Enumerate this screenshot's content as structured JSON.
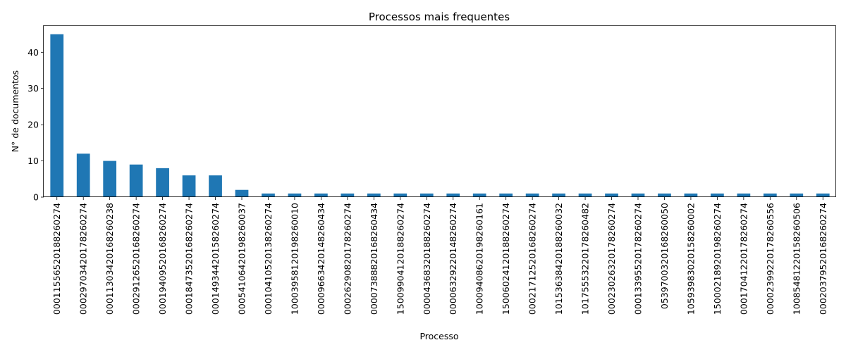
{
  "chart_data": {
    "type": "bar",
    "title": "Processos mais frequentes",
    "xlabel": "Processo",
    "ylabel": "N° de documentos",
    "ylim": [
      0,
      47.25
    ],
    "yticks": [
      0,
      10,
      20,
      30,
      40
    ],
    "bar_color": "#1f77b4",
    "grid": false,
    "categories": [
      "00011556520188260274",
      "00029703420178260274",
      "00011303420168260238",
      "00029126520168260274",
      "00019409520168260274",
      "00018473520168260274",
      "00014934420158260274",
      "00054106420198260037",
      "00010410520138260274",
      "10003958120198260010",
      "00009663420148260434",
      "00026290820178260274",
      "00007388820168260434",
      "15009904120188260274",
      "00004368320188260274",
      "00006329220148260274",
      "10009408620198260161",
      "15006024120188260274",
      "00021712520168260274",
      "10153638420188260032",
      "10175553220178260482",
      "00023026320178260274",
      "00013395520178260274",
      "05397003201682600 50",
      "10593983020158260002",
      "15000218920198260274",
      "00017041220178260274",
      "00002399220178260556",
      "10085481220158260506",
      "00020379520168260274"
    ],
    "values": [
      45,
      12,
      10,
      9,
      8,
      6,
      6,
      2,
      1,
      1,
      1,
      1,
      1,
      1,
      1,
      1,
      1,
      1,
      1,
      1,
      1,
      1,
      1,
      1,
      1,
      1,
      1,
      1,
      1,
      1
    ]
  }
}
